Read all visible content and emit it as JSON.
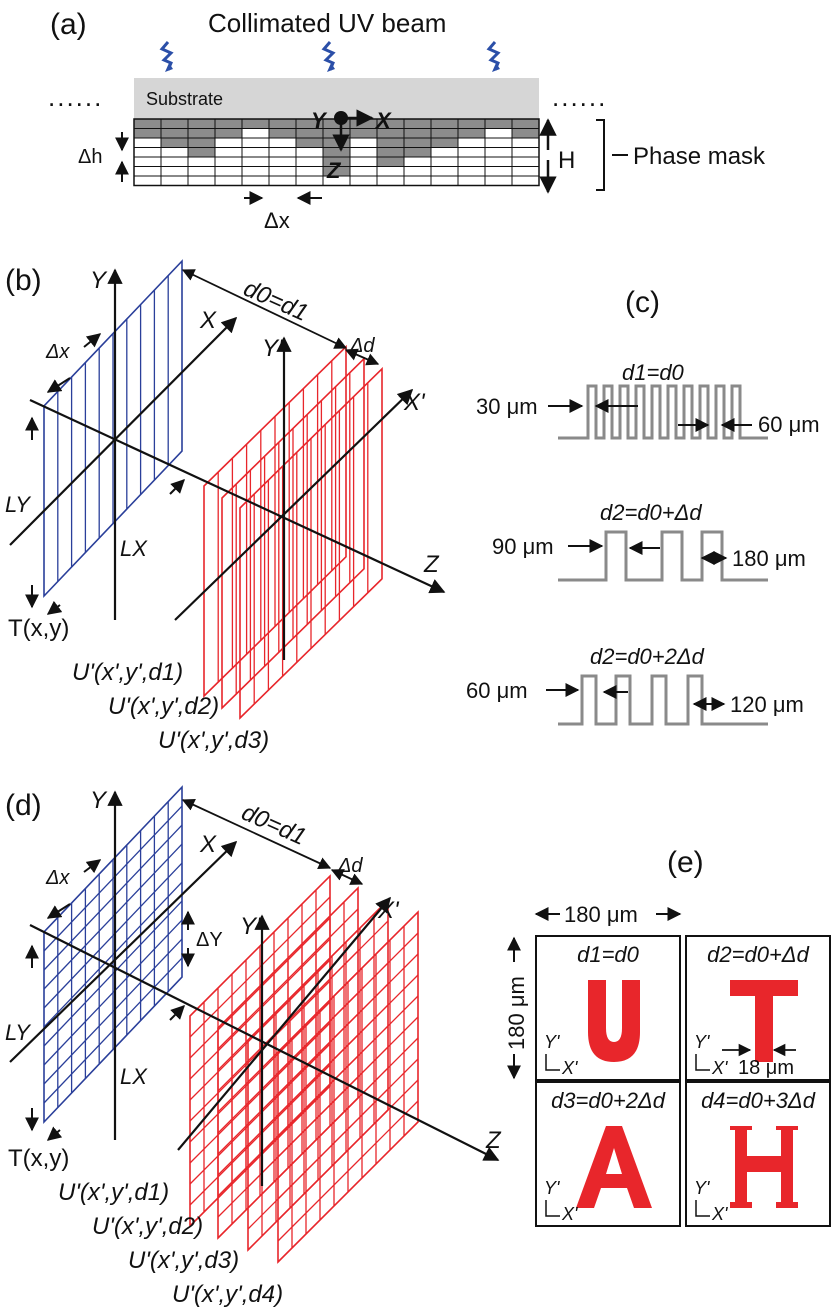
{
  "colors": {
    "blue": "#2a3f9a",
    "red": "#e8262b",
    "gray": "#8a8a8a",
    "substrate": "#d6d6d6",
    "mask_fill": "#8c8c8c",
    "uv": "#2b4fa8"
  },
  "panel_a": {
    "label": "(a)",
    "title": "Collimated UV beam",
    "substrate": "Substrate",
    "dots_left": "......",
    "dots_right": "......",
    "axis_y": "Y",
    "axis_x": "X",
    "axis_z": "Z",
    "delta_h": "Δh",
    "delta_x": "Δx",
    "height": "H",
    "phase_mask": "Phase mask"
  },
  "panel_b": {
    "label": "(b)",
    "axis_y": "Y",
    "axis_x": "X",
    "axis_y2": "Y'",
    "axis_x2": "X'",
    "axis_z": "Z",
    "distance": "d0=d1",
    "delta_d": "Δd",
    "delta_x": "Δx",
    "ly": "LY",
    "lx": "LX",
    "t": "T(x,y)",
    "u1": "U'(x',y',d1)",
    "u2": "U'(x',y',d2)",
    "u3": "U'(x',y',d3)"
  },
  "panel_c": {
    "label": "(c)",
    "plots": [
      {
        "title": "d1=d0",
        "left": "30 μm",
        "right": "60 μm"
      },
      {
        "title": "d2=d0+Δd",
        "left": "90 μm",
        "right": "180 μm"
      },
      {
        "title": "d2=d0+2Δd",
        "left": "60 μm",
        "right": "120 μm"
      }
    ]
  },
  "panel_d": {
    "label": "(d)",
    "axis_y": "Y",
    "axis_x": "X",
    "axis_y2": "Y'",
    "axis_x2": "X'",
    "axis_z": "Z",
    "distance": "d0=d1",
    "delta_d": "Δd",
    "delta_x": "Δx",
    "delta_y": "ΔY",
    "ly": "LY",
    "lx": "LX",
    "t": "T(x,y)",
    "u1": "U'(x',y',d1)",
    "u2": "U'(x',y',d2)",
    "u3": "U'(x',y',d3)",
    "u4": "U'(x',y',d4)"
  },
  "panel_e": {
    "label": "(e)",
    "width": "180 μm",
    "height": "180 μm",
    "cells": [
      {
        "title": "d1=d0",
        "letter": "U",
        "ylab": "Y'",
        "xlab": "X'",
        "note": ""
      },
      {
        "title": "d2=d0+Δd",
        "letter": "T",
        "ylab": "Y'",
        "xlab": "X'",
        "note": "18 μm"
      },
      {
        "title": "d3=d0+2Δd",
        "letter": "A",
        "ylab": "Y'",
        "xlab": "X'",
        "note": ""
      },
      {
        "title": "d4=d0+3Δd",
        "letter": "H",
        "ylab": "Y'",
        "xlab": "X'",
        "note": ""
      }
    ]
  }
}
